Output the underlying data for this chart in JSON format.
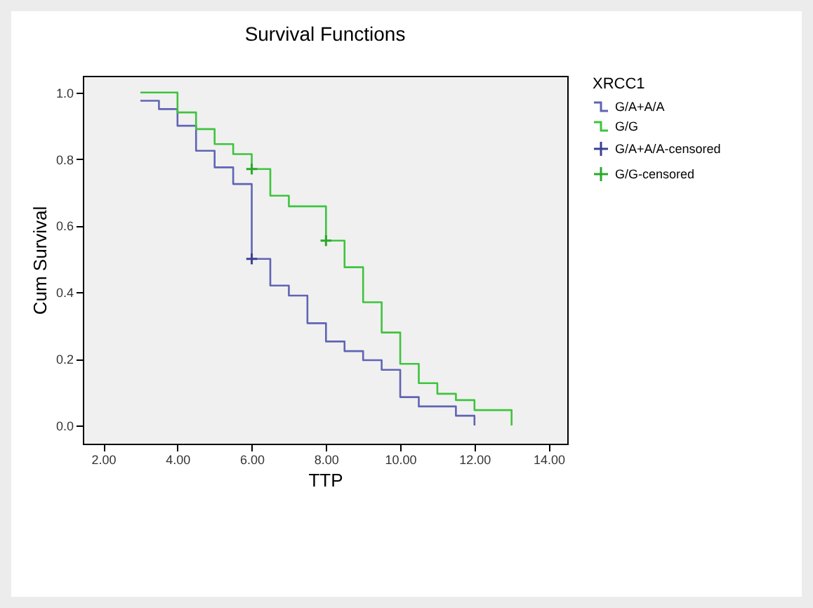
{
  "chart_data": {
    "type": "step",
    "title": "Survival Functions",
    "xlabel": "TTP",
    "ylabel": "Cum Survival",
    "legend_title": "XRCC1",
    "legend": "right",
    "xlim": [
      1.45,
      14.5
    ],
    "ylim": [
      -0.055,
      1.05
    ],
    "xticks": [
      {
        "value": 2,
        "label": "2.00"
      },
      {
        "value": 4,
        "label": "4.00"
      },
      {
        "value": 6,
        "label": "6.00"
      },
      {
        "value": 8,
        "label": "8.00"
      },
      {
        "value": 10,
        "label": "10.00"
      },
      {
        "value": 12,
        "label": "12.00"
      },
      {
        "value": 14,
        "label": "14.00"
      }
    ],
    "yticks": [
      {
        "value": 0,
        "label": "0.0"
      },
      {
        "value": 0.2,
        "label": "0.2"
      },
      {
        "value": 0.4,
        "label": "0.4"
      },
      {
        "value": 0.6,
        "label": "0.6"
      },
      {
        "value": 0.8,
        "label": "0.8"
      },
      {
        "value": 1,
        "label": "1.0"
      }
    ],
    "series": [
      {
        "name": "G/A+A/A",
        "color": "#6064b4",
        "x": [
          3,
          3.5,
          4,
          4.5,
          5,
          5.5,
          6,
          6.5,
          7,
          7.5,
          8,
          8.5,
          9,
          9.5,
          10,
          10.5,
          11.5,
          12
        ],
        "values": [
          0.975,
          0.95,
          0.9,
          0.825,
          0.775,
          0.725,
          0.5,
          0.42,
          0.39,
          0.307,
          0.252,
          0.223,
          0.196,
          0.167,
          0.085,
          0.057,
          0.029,
          0
        ]
      },
      {
        "name": "G/G",
        "color": "#3ec43e",
        "x": [
          3,
          4,
          4.5,
          5,
          5.5,
          6,
          6.5,
          7,
          8,
          8.5,
          9,
          9.5,
          10,
          10.5,
          11,
          11.5,
          12,
          13
        ],
        "values": [
          1,
          0.94,
          0.89,
          0.845,
          0.815,
          0.77,
          0.69,
          0.658,
          0.555,
          0.475,
          0.37,
          0.279,
          0.185,
          0.127,
          0.095,
          0.076,
          0.046,
          0
        ]
      },
      {
        "name": "G/A+A/A-censored",
        "type": "scatter",
        "marker": "cross",
        "color": "#3c4090",
        "x": [
          6
        ],
        "values": [
          0.5
        ]
      },
      {
        "name": "G/G-censored",
        "type": "scatter",
        "marker": "cross",
        "color": "#2aa82a",
        "x": [
          6,
          8
        ],
        "values": [
          0.77,
          0.555
        ]
      }
    ]
  }
}
